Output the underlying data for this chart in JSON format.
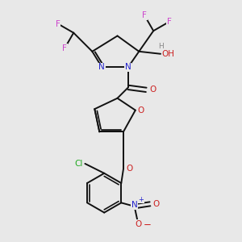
{
  "background_color": "#e8e8e8",
  "figure_size": [
    3.0,
    3.0
  ],
  "dpi": 100,
  "atom_colors": {
    "F": "#cc44cc",
    "N": "#2222cc",
    "O": "#cc2222",
    "Cl": "#22aa22",
    "H": "#888888",
    "C": "#000000"
  },
  "bond_color": "#111111",
  "bond_width": 1.4
}
